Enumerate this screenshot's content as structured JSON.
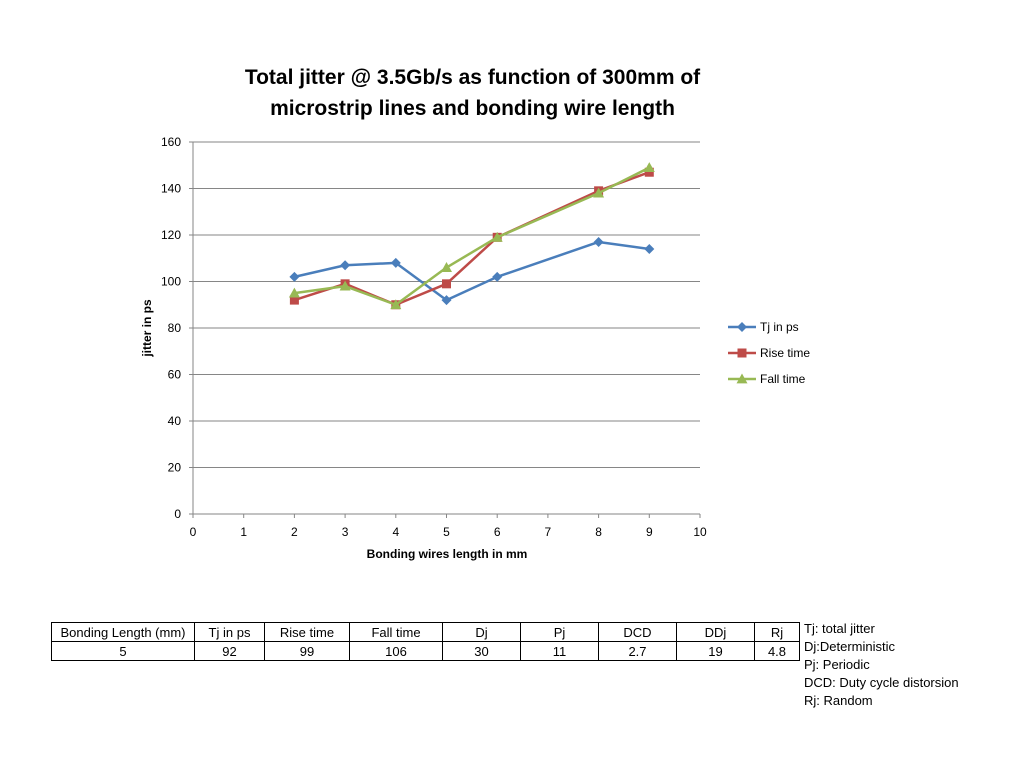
{
  "chart_data": {
    "type": "line",
    "title": [
      "Total jitter @ 3.5Gb/s as function of 300mm of",
      "microstrip lines and bonding wire length"
    ],
    "xlabel": "Bonding wires length in mm",
    "ylabel": "jitter in ps",
    "xlim": [
      0,
      10
    ],
    "ylim": [
      0,
      160
    ],
    "x_ticks": [
      0,
      1,
      2,
      3,
      4,
      5,
      6,
      7,
      8,
      9,
      10
    ],
    "y_ticks": [
      0,
      20,
      40,
      60,
      80,
      100,
      120,
      140,
      160
    ],
    "grid": "horizontal",
    "legend_position": "right",
    "series": [
      {
        "name": "Tj in ps",
        "color": "#4a7ebb",
        "marker": "diamond",
        "x": [
          2,
          3,
          4,
          5,
          6,
          8,
          9
        ],
        "y": [
          102,
          107,
          108,
          92,
          102,
          117,
          114
        ]
      },
      {
        "name": "Rise time",
        "color": "#be4b48",
        "marker": "square",
        "x": [
          2,
          3,
          4,
          5,
          6,
          8,
          9
        ],
        "y": [
          92,
          99,
          90,
          99,
          119,
          139,
          147
        ]
      },
      {
        "name": "Fall time",
        "color": "#98b954",
        "marker": "triangle",
        "x": [
          2,
          3,
          4,
          5,
          6,
          8,
          9
        ],
        "y": [
          95,
          98,
          90,
          106,
          119,
          138,
          149
        ]
      }
    ]
  },
  "table": {
    "headers": [
      "Bonding Length (mm)",
      "Tj in ps",
      "Rise time",
      "Fall time",
      "Dj",
      "Pj",
      "DCD",
      "DDj",
      "Rj"
    ],
    "row": [
      "5",
      "92",
      "99",
      "106",
      "30",
      "11",
      "2.7",
      "19",
      "4.8"
    ]
  },
  "notes": [
    "Tj: total jitter",
    "Dj:Deterministic",
    "Pj: Periodic",
    "DCD: Duty cycle distorsion",
    "Rj: Random"
  ]
}
